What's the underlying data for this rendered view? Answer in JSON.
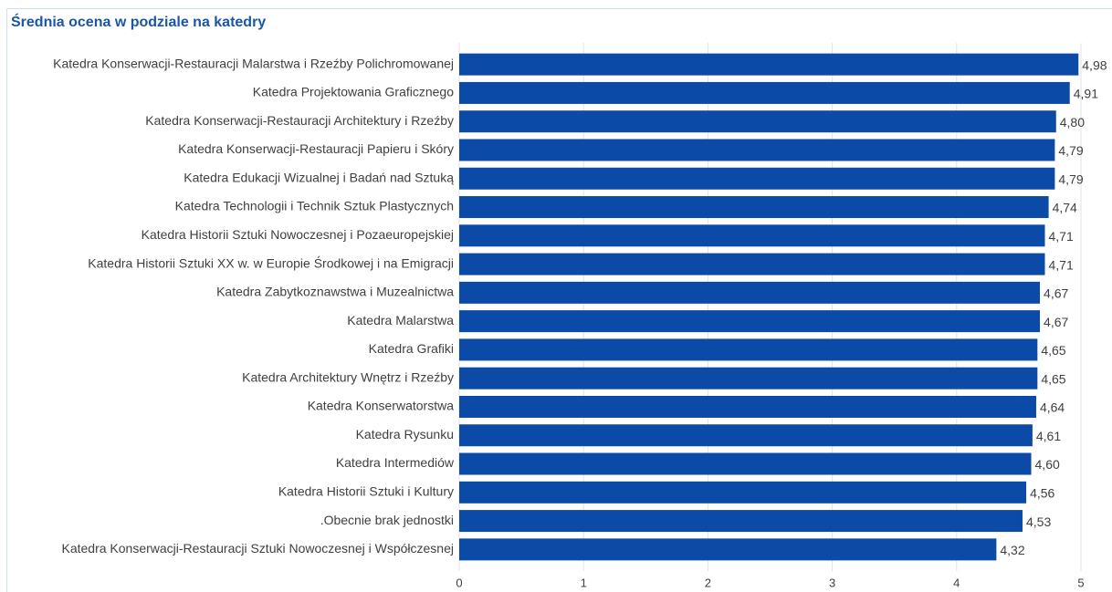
{
  "chart_data": {
    "type": "barh",
    "title": "Średnia ocena w podziale na katedry",
    "categories": [
      "Katedra Konserwacji-Restauracji Malarstwa i Rzeźby Polichromowanej",
      "Katedra Projektowania Graficznego",
      "Katedra Konserwacji-Restauracji Architektury i Rzeźby",
      "Katedra Konserwacji-Restauracji Papieru i Skóry",
      "Katedra Edukacji Wizualnej i Badań nad Sztuką",
      "Katedra Technologii i Technik Sztuk Plastycznych",
      "Katedra Historii Sztuki Nowoczesnej i Pozaeuropejskiej",
      "Katedra Historii Sztuki XX w. w Europie Środkowej i na Emigracji",
      "Katedra Zabytkoznawstwa i Muzealnictwa",
      "Katedra Malarstwa",
      "Katedra Grafiki",
      "Katedra Architektury Wnętrz i Rzeźby",
      "Katedra Konserwatorstwa",
      "Katedra Rysunku",
      "Katedra Intermediów",
      "Katedra Historii Sztuki i Kultury",
      ".Obecnie brak jednostki",
      "Katedra Konserwacji-Restauracji Sztuki Nowoczesnej i Współczesnej"
    ],
    "values": [
      4.98,
      4.91,
      4.8,
      4.79,
      4.79,
      4.74,
      4.71,
      4.71,
      4.67,
      4.67,
      4.65,
      4.65,
      4.64,
      4.61,
      4.6,
      4.56,
      4.53,
      4.32
    ],
    "value_labels": [
      "4,98",
      "4,91",
      "4,80",
      "4,79",
      "4,79",
      "4,74",
      "4,71",
      "4,71",
      "4,67",
      "4,67",
      "4,65",
      "4,65",
      "4,64",
      "4,61",
      "4,60",
      "4,56",
      "4,53",
      "4,32"
    ],
    "color": "#0b4aa6",
    "xlim": [
      0,
      5
    ],
    "xticks": [
      0,
      1,
      2,
      3,
      4,
      5
    ],
    "grid": true
  }
}
